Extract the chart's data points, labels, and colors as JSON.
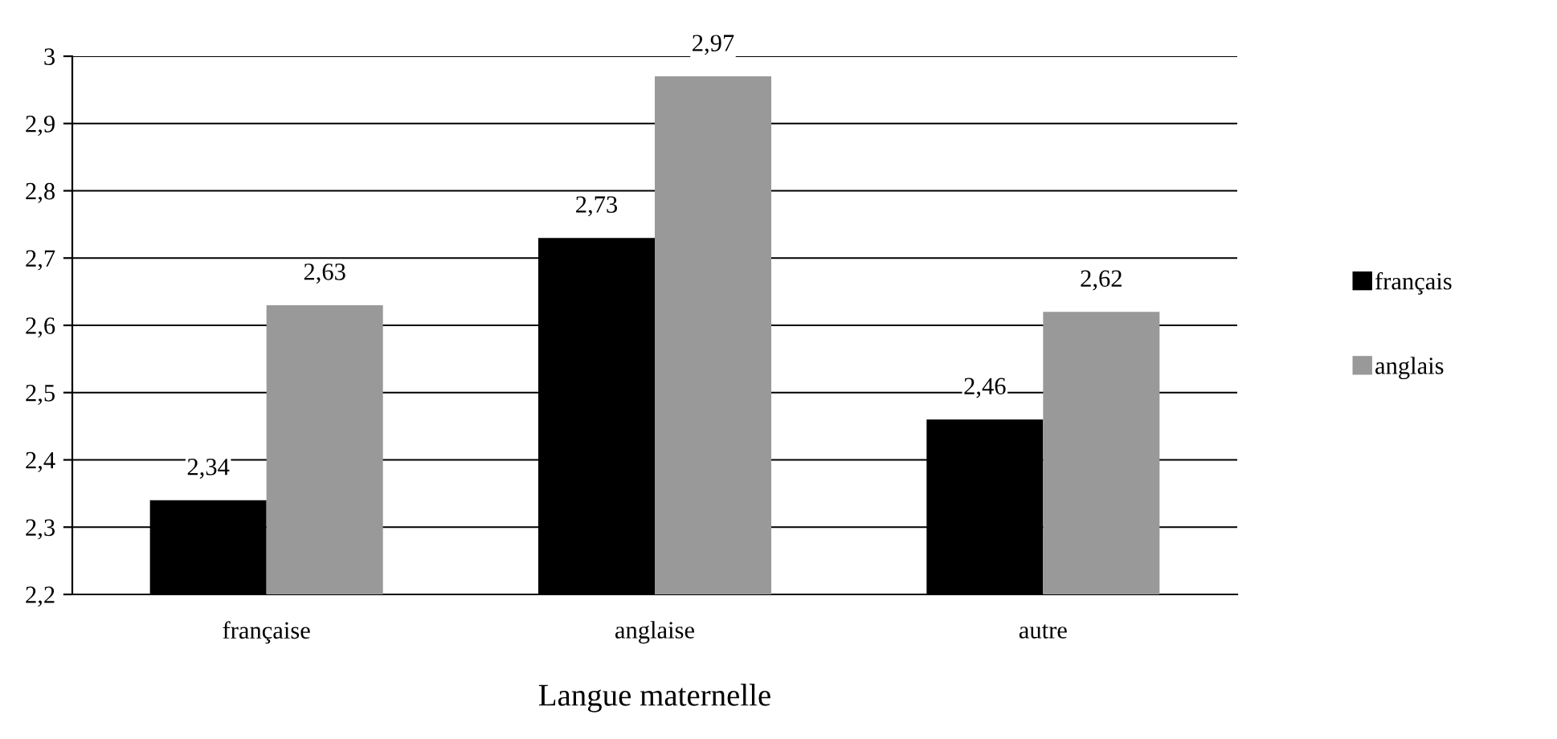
{
  "chart_data": {
    "type": "bar",
    "xlabel": "Langue maternelle",
    "categories": [
      "française",
      "anglaise",
      "autre"
    ],
    "series": [
      {
        "name": "français",
        "color": "#000000",
        "values": [
          2.34,
          2.73,
          2.46
        ],
        "value_labels": [
          "2,34",
          "2,73",
          "2,46"
        ]
      },
      {
        "name": "anglais",
        "color": "#999999",
        "values": [
          2.63,
          2.97,
          2.62
        ],
        "value_labels": [
          "2,63",
          "2,97",
          "2,62"
        ]
      }
    ],
    "ylim": [
      2.2,
      3
    ],
    "yticks": [
      {
        "value": 2.2,
        "label": "2,2"
      },
      {
        "value": 2.3,
        "label": "2,3"
      },
      {
        "value": 2.4,
        "label": "2,4"
      },
      {
        "value": 2.5,
        "label": "2,5"
      },
      {
        "value": 2.6,
        "label": "2,6"
      },
      {
        "value": 2.7,
        "label": "2,7"
      },
      {
        "value": 2.8,
        "label": "2,8"
      },
      {
        "value": 2.9,
        "label": "2,9"
      },
      3
    ],
    "grid": "y",
    "legend": "right"
  }
}
